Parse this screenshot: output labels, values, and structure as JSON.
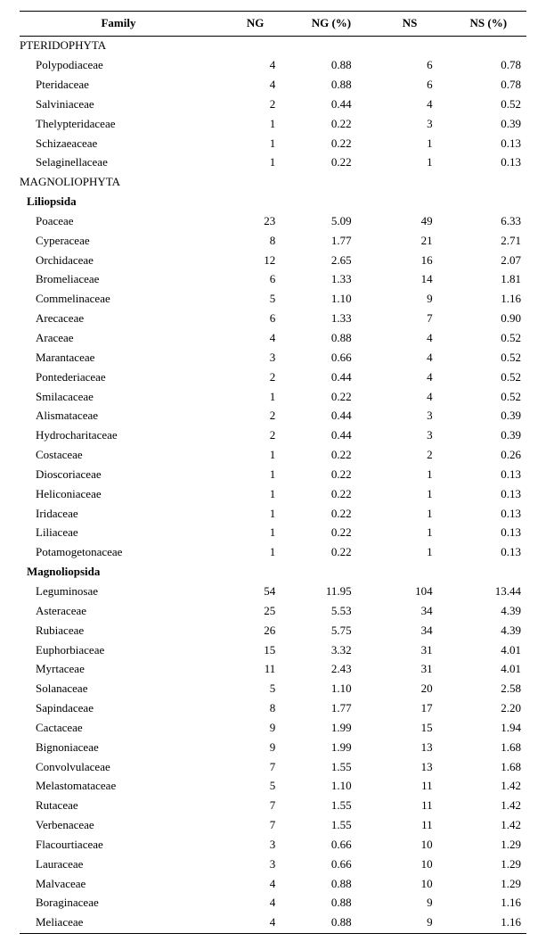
{
  "columns": {
    "family": "Family",
    "ng": "NG",
    "ngp": "NG (%)",
    "ns": "NS",
    "nsp": "NS (%)"
  },
  "rows": [
    {
      "kind": "division",
      "label": "PTERIDOPHYTA"
    },
    {
      "kind": "family",
      "label": "Polypodiaceae",
      "ng": "4",
      "ngp": "0.88",
      "ns": "6",
      "nsp": "0.78"
    },
    {
      "kind": "family",
      "label": "Pteridaceae",
      "ng": "4",
      "ngp": "0.88",
      "ns": "6",
      "nsp": "0.78"
    },
    {
      "kind": "family",
      "label": "Salviniaceae",
      "ng": "2",
      "ngp": "0.44",
      "ns": "4",
      "nsp": "0.52"
    },
    {
      "kind": "family",
      "label": "Thelypteridaceae",
      "ng": "1",
      "ngp": "0.22",
      "ns": "3",
      "nsp": "0.39"
    },
    {
      "kind": "family",
      "label": "Schizaeaceae",
      "ng": "1",
      "ngp": "0.22",
      "ns": "1",
      "nsp": "0.13"
    },
    {
      "kind": "family",
      "label": "Selaginellaceae",
      "ng": "1",
      "ngp": "0.22",
      "ns": "1",
      "nsp": "0.13"
    },
    {
      "kind": "division",
      "label": "MAGNOLIOPHYTA"
    },
    {
      "kind": "class",
      "label": "Liliopsida"
    },
    {
      "kind": "family",
      "label": "Poaceae",
      "ng": "23",
      "ngp": "5.09",
      "ns": "49",
      "nsp": "6.33"
    },
    {
      "kind": "family",
      "label": "Cyperaceae",
      "ng": "8",
      "ngp": "1.77",
      "ns": "21",
      "nsp": "2.71"
    },
    {
      "kind": "family",
      "label": "Orchidaceae",
      "ng": "12",
      "ngp": "2.65",
      "ns": "16",
      "nsp": "2.07"
    },
    {
      "kind": "family",
      "label": "Bromeliaceae",
      "ng": "6",
      "ngp": "1.33",
      "ns": "14",
      "nsp": "1.81"
    },
    {
      "kind": "family",
      "label": "Commelinaceae",
      "ng": "5",
      "ngp": "1.10",
      "ns": "9",
      "nsp": "1.16"
    },
    {
      "kind": "family",
      "label": "Arecaceae",
      "ng": "6",
      "ngp": "1.33",
      "ns": "7",
      "nsp": "0.90"
    },
    {
      "kind": "family",
      "label": "Araceae",
      "ng": "4",
      "ngp": "0.88",
      "ns": "4",
      "nsp": "0.52"
    },
    {
      "kind": "family",
      "label": "Marantaceae",
      "ng": "3",
      "ngp": "0.66",
      "ns": "4",
      "nsp": "0.52"
    },
    {
      "kind": "family",
      "label": "Pontederiaceae",
      "ng": "2",
      "ngp": "0.44",
      "ns": "4",
      "nsp": "0.52"
    },
    {
      "kind": "family",
      "label": "Smilacaceae",
      "ng": "1",
      "ngp": "0.22",
      "ns": "4",
      "nsp": "0.52"
    },
    {
      "kind": "family",
      "label": "Alismataceae",
      "ng": "2",
      "ngp": "0.44",
      "ns": "3",
      "nsp": "0.39"
    },
    {
      "kind": "family",
      "label": "Hydrocharitaceae",
      "ng": "2",
      "ngp": "0.44",
      "ns": "3",
      "nsp": "0.39"
    },
    {
      "kind": "family",
      "label": "Costaceae",
      "ng": "1",
      "ngp": "0.22",
      "ns": "2",
      "nsp": "0.26"
    },
    {
      "kind": "family",
      "label": "Dioscoriaceae",
      "ng": "1",
      "ngp": "0.22",
      "ns": "1",
      "nsp": "0.13"
    },
    {
      "kind": "family",
      "label": "Heliconiaceae",
      "ng": "1",
      "ngp": "0.22",
      "ns": "1",
      "nsp": "0.13"
    },
    {
      "kind": "family",
      "label": "Iridaceae",
      "ng": "1",
      "ngp": "0.22",
      "ns": "1",
      "nsp": "0.13"
    },
    {
      "kind": "family",
      "label": "Liliaceae",
      "ng": "1",
      "ngp": "0.22",
      "ns": "1",
      "nsp": "0.13"
    },
    {
      "kind": "family",
      "label": "Potamogetonaceae",
      "ng": "1",
      "ngp": "0.22",
      "ns": "1",
      "nsp": "0.13"
    },
    {
      "kind": "class",
      "label": "Magnoliopsida"
    },
    {
      "kind": "family",
      "label": "Leguminosae",
      "ng": "54",
      "ngp": "11.95",
      "ns": "104",
      "nsp": "13.44"
    },
    {
      "kind": "family",
      "label": "Asteraceae",
      "ng": "25",
      "ngp": "5.53",
      "ns": "34",
      "nsp": "4.39"
    },
    {
      "kind": "family",
      "label": "Rubiaceae",
      "ng": "26",
      "ngp": "5.75",
      "ns": "34",
      "nsp": "4.39"
    },
    {
      "kind": "family",
      "label": "Euphorbiaceae",
      "ng": "15",
      "ngp": "3.32",
      "ns": "31",
      "nsp": "4.01"
    },
    {
      "kind": "family",
      "label": "Myrtaceae",
      "ng": "11",
      "ngp": "2.43",
      "ns": "31",
      "nsp": "4.01"
    },
    {
      "kind": "family",
      "label": "Solanaceae",
      "ng": "5",
      "ngp": "1.10",
      "ns": "20",
      "nsp": "2.58"
    },
    {
      "kind": "family",
      "label": "Sapindaceae",
      "ng": "8",
      "ngp": "1.77",
      "ns": "17",
      "nsp": "2.20"
    },
    {
      "kind": "family",
      "label": "Cactaceae",
      "ng": "9",
      "ngp": "1.99",
      "ns": "15",
      "nsp": "1.94"
    },
    {
      "kind": "family",
      "label": "Bignoniaceae",
      "ng": "9",
      "ngp": "1.99",
      "ns": "13",
      "nsp": "1.68"
    },
    {
      "kind": "family",
      "label": "Convolvulaceae",
      "ng": "7",
      "ngp": "1.55",
      "ns": "13",
      "nsp": "1.68"
    },
    {
      "kind": "family",
      "label": "Melastomataceae",
      "ng": "5",
      "ngp": "1.10",
      "ns": "11",
      "nsp": "1.42"
    },
    {
      "kind": "family",
      "label": "Rutaceae",
      "ng": "7",
      "ngp": "1.55",
      "ns": "11",
      "nsp": "1.42"
    },
    {
      "kind": "family",
      "label": "Verbenaceae",
      "ng": "7",
      "ngp": "1.55",
      "ns": "11",
      "nsp": "1.42"
    },
    {
      "kind": "family",
      "label": "Flacourtiaceae",
      "ng": "3",
      "ngp": "0.66",
      "ns": "10",
      "nsp": "1.29"
    },
    {
      "kind": "family",
      "label": "Lauraceae",
      "ng": "3",
      "ngp": "0.66",
      "ns": "10",
      "nsp": "1.29"
    },
    {
      "kind": "family",
      "label": "Malvaceae",
      "ng": "4",
      "ngp": "0.88",
      "ns": "10",
      "nsp": "1.29"
    },
    {
      "kind": "family",
      "label": "Boraginaceae",
      "ng": "4",
      "ngp": "0.88",
      "ns": "9",
      "nsp": "1.16"
    },
    {
      "kind": "family",
      "label": "Meliaceae",
      "ng": "4",
      "ngp": "0.88",
      "ns": "9",
      "nsp": "1.16"
    }
  ]
}
